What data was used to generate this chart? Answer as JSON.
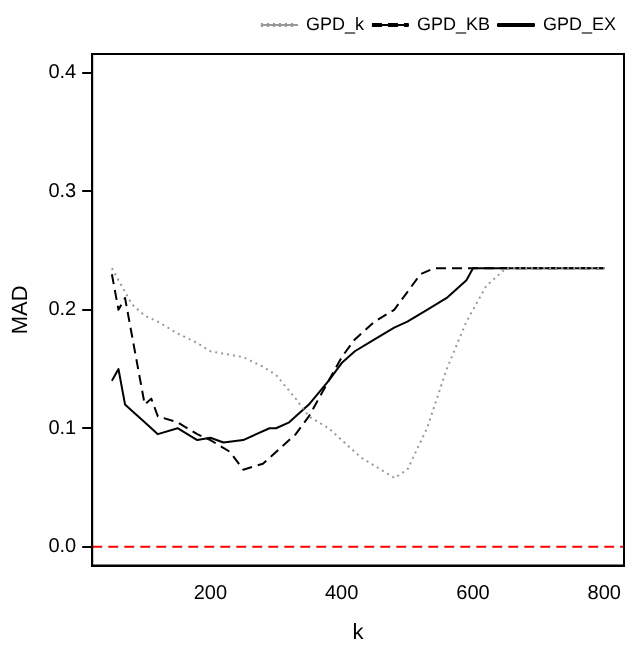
{
  "chart_data": {
    "type": "line",
    "xlabel": "k",
    "ylabel": "MAD",
    "xlim": [
      20,
      830
    ],
    "ylim": [
      -0.016,
      0.416
    ],
    "xticks": [
      200,
      400,
      600,
      800
    ],
    "yticks": [
      {
        "value": 0,
        "label": "0.0"
      },
      {
        "value": 0.1,
        "label": "0.1"
      },
      {
        "value": 0.2,
        "label": "0.2"
      },
      {
        "value": 0.3,
        "label": "0.3"
      },
      {
        "value": 0.4,
        "label": "0.4"
      }
    ],
    "grid": false,
    "legend": "top right",
    "marker": "none",
    "series": [
      {
        "name": "GPD_k",
        "color": "#999999",
        "line_style": "dotted",
        "x": [
          50,
          60,
          70,
          80,
          100,
          120,
          150,
          180,
          200,
          230,
          250,
          280,
          300,
          330,
          350,
          380,
          400,
          430,
          460,
          480,
          500,
          530,
          560,
          590,
          620,
          650,
          700,
          800
        ],
        "values": [
          0.235,
          0.225,
          0.215,
          0.205,
          0.195,
          0.19,
          0.18,
          0.172,
          0.165,
          0.162,
          0.16,
          0.152,
          0.145,
          0.125,
          0.11,
          0.1,
          0.09,
          0.075,
          0.065,
          0.058,
          0.065,
          0.1,
          0.15,
          0.19,
          0.22,
          0.235,
          0.235,
          0.235
        ]
      },
      {
        "name": "GPD_KB",
        "color": "#000000",
        "line_style": "dashed",
        "x": [
          50,
          60,
          70,
          80,
          90,
          100,
          110,
          120,
          150,
          180,
          200,
          230,
          250,
          280,
          300,
          330,
          350,
          380,
          400,
          420,
          450,
          480,
          500,
          520,
          540,
          600,
          700,
          800
        ],
        "values": [
          0.23,
          0.2,
          0.21,
          0.18,
          0.15,
          0.12,
          0.125,
          0.11,
          0.105,
          0.095,
          0.09,
          0.08,
          0.065,
          0.07,
          0.08,
          0.095,
          0.11,
          0.14,
          0.16,
          0.175,
          0.19,
          0.2,
          0.215,
          0.23,
          0.235,
          0.235,
          0.235,
          0.235
        ]
      },
      {
        "name": "GPD_EX",
        "color": "#000000",
        "line_style": "solid",
        "x": [
          50,
          60,
          70,
          80,
          100,
          120,
          150,
          180,
          200,
          220,
          250,
          270,
          290,
          300,
          320,
          350,
          380,
          400,
          420,
          450,
          480,
          500,
          530,
          560,
          590,
          600,
          700,
          800
        ],
        "values": [
          0.14,
          0.15,
          0.12,
          0.115,
          0.105,
          0.095,
          0.1,
          0.09,
          0.092,
          0.088,
          0.09,
          0.095,
          0.1,
          0.1,
          0.105,
          0.12,
          0.14,
          0.155,
          0.165,
          0.175,
          0.185,
          0.19,
          0.2,
          0.21,
          0.225,
          0.235,
          0.235,
          0.235
        ]
      }
    ],
    "ref_lines": [
      {
        "axis": "y",
        "value": 0,
        "color": "#ff0000",
        "line_style": "dashed"
      }
    ]
  }
}
